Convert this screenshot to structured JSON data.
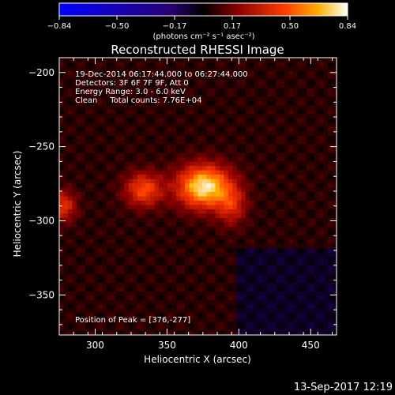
{
  "chart_data": {
    "type": "heatmap",
    "title": "Reconstructed RHESSI Image",
    "xlabel": "Heliocentric X (arcsec)",
    "ylabel": "Heliocentric Y (arcsec)",
    "xlim": [
      275,
      468
    ],
    "ylim": [
      -377,
      -190
    ],
    "x_ticks": [
      300,
      350,
      400,
      450
    ],
    "y_ticks": [
      -200,
      -250,
      -300,
      -350
    ],
    "colorbar": {
      "min": -0.84,
      "max": 0.84,
      "ticks": [
        "-0.84",
        "-0.50",
        "-0.17",
        "0.17",
        "0.50",
        "0.84"
      ],
      "unit_label": "(photons cm⁻² s⁻¹ asec⁻²)",
      "colormap": "red-temperature"
    },
    "annotations": [
      "19-Dec-2014 06:17:44.000 to 06:27:44.000",
      "Detectors: 3F 6F 7F 9F, Att 0",
      "Energy Range: 3.0 - 6.0 keV",
      "Clean     Total counts: 7.76E+04"
    ],
    "peak_label": "Position of Peak = [376,-277]",
    "sources": [
      {
        "x": 376,
        "y": -277,
        "peak": 0.84,
        "sigma_x": 13,
        "sigma_y": 10
      },
      {
        "x": 334,
        "y": -279,
        "peak": 0.52,
        "sigma_x": 9,
        "sigma_y": 8
      },
      {
        "x": 278,
        "y": -290,
        "peak": 0.45,
        "sigma_x": 6,
        "sigma_y": 7
      },
      {
        "x": 395,
        "y": -290,
        "peak": 0.38,
        "sigma_x": 7,
        "sigma_y": 9
      }
    ],
    "background_level": 0.17
  },
  "footer_date": "13-Sep-2017 12:19"
}
